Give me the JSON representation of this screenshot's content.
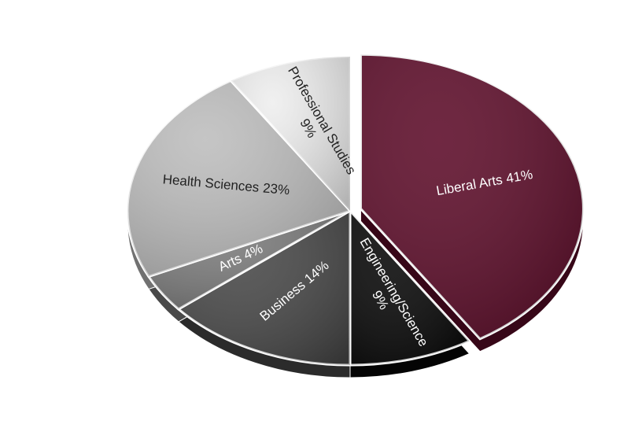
{
  "chart_data": {
    "type": "pie",
    "categories": [
      "Liberal Arts",
      "Engineering/Science",
      "Business",
      "Arts",
      "Health Sciences",
      "Professional Studies"
    ],
    "values": [
      41,
      9,
      14,
      4,
      23,
      9
    ],
    "value_labels": [
      "41%",
      "9%",
      "14%",
      "4%",
      "23%",
      "9%"
    ],
    "colors": [
      "#5c0b28",
      "#060606",
      "#474747",
      "#7a7a7a",
      "#bdbdbd",
      "#eeeeee"
    ],
    "exploded": [
      true,
      false,
      false,
      false,
      false,
      false
    ]
  }
}
